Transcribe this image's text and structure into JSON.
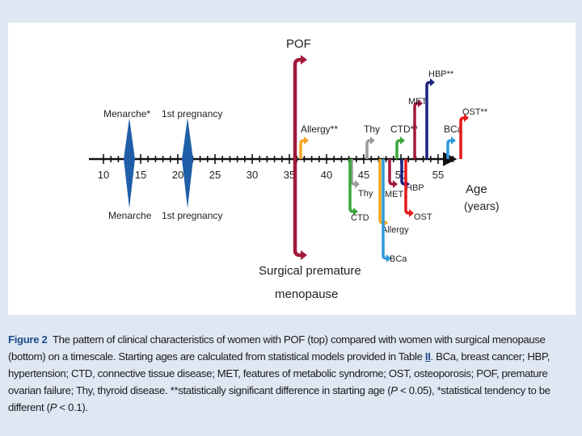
{
  "figure": {
    "axis_label_1": "Age",
    "axis_label_2": "(years)",
    "ticks": [
      "10",
      "15",
      "20",
      "25",
      "30",
      "35",
      "40",
      "45",
      "50",
      "55"
    ],
    "pof_label": "POF",
    "surgical_label_1": "Surgical premature",
    "surgical_label_2": "menopause",
    "top_events": [
      {
        "label": "Menarche*",
        "color": "#1f5fa8"
      },
      {
        "label": "1st pregnancy",
        "color": "#1f5fa8"
      },
      {
        "label": "Allergy**",
        "color": "#f5a623"
      },
      {
        "label": "Thy",
        "color": "#9b9b9b"
      },
      {
        "label": "CTD**",
        "color": "#3aa63a"
      },
      {
        "label": "MET",
        "color": "#a3193a"
      },
      {
        "label": "HBP**",
        "color": "#1a237e"
      },
      {
        "label": "BCa",
        "color": "#2e9bdc"
      },
      {
        "label": "OST**",
        "color": "#e41a1c"
      }
    ],
    "bottom_events": [
      {
        "label": "Menarche",
        "color": "#1f5fa8"
      },
      {
        "label": "1st pregnancy",
        "color": "#1f5fa8"
      },
      {
        "label": "Thy",
        "color": "#9b9b9b"
      },
      {
        "label": "CTD",
        "color": "#3aa63a"
      },
      {
        "label": "Allergy",
        "color": "#f5a623"
      },
      {
        "label": "BCa",
        "color": "#2e9bdc"
      },
      {
        "label": "MET",
        "color": "#a3193a"
      },
      {
        "label": "HBP",
        "color": "#1a237e"
      },
      {
        "label": "OST",
        "color": "#e41a1c"
      }
    ],
    "pof_color": "#a3193a"
  },
  "caption": {
    "fig_label": "Figure 2",
    "text_1": "The pattern of clinical characteristics of women with POF (top) compared with women with surgical menopause (bottom) on a timescale. Starting ages are calculated from statistical models provided in Table ",
    "table_ref": "II",
    "text_2": ". BCa, breast cancer; HBP, hypertension; CTD, connective tissue disease; MET, features of metabolic syndrome; OST, osteoporosis; POF, premature ovarian failure; Thy, thyroid disease. **statistically significant difference in starting age (",
    "p1_var": "P",
    "p1_rest": " < 0.05), *statistical tendency to be different (",
    "p2_var": "P",
    "p2_rest": " < 0.1)."
  }
}
